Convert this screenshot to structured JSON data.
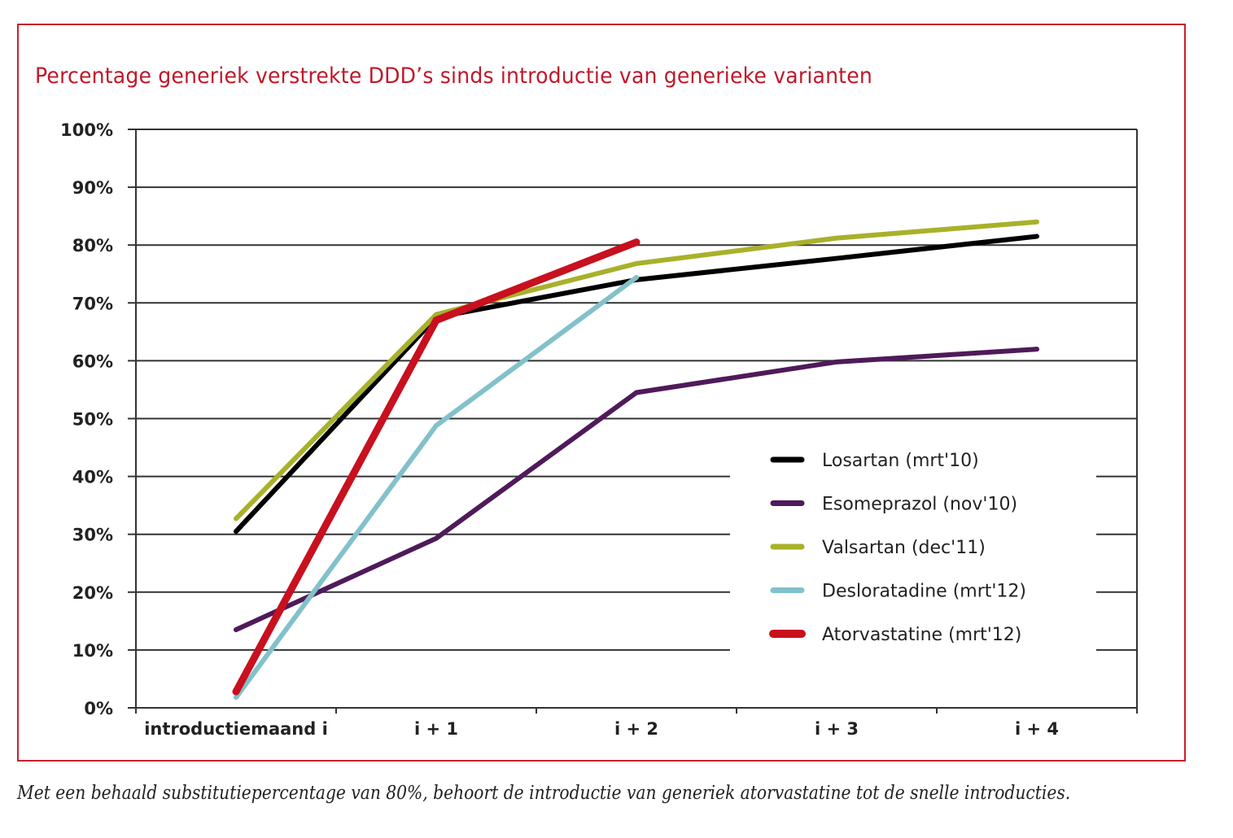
{
  "chart_data": {
    "type": "line",
    "title": "Percentage generiek verstrekte DDD’s sinds introductie van generieke varianten",
    "xlabel": "",
    "ylabel": "",
    "categories": [
      "introductiemaand i",
      "i + 1",
      "i + 2",
      "i + 3",
      "i + 4"
    ],
    "ylim": [
      0,
      100
    ],
    "yticks": [
      0,
      10,
      20,
      30,
      40,
      50,
      60,
      70,
      80,
      90,
      100
    ],
    "ytick_labels": [
      "0%",
      "10%",
      "20%",
      "30%",
      "40%",
      "50%",
      "60%",
      "70%",
      "80%",
      "90%",
      "100%"
    ],
    "grid": true,
    "legend_position": "bottom-right",
    "series": [
      {
        "name": "Losartan (mrt'10)",
        "color": "#000000",
        "values": [
          30.5,
          67.5,
          74.0,
          77.7,
          81.5
        ]
      },
      {
        "name": "Esomeprazol (nov'10)",
        "color": "#4f1a5a",
        "values": [
          13.5,
          29.3,
          54.5,
          59.8,
          62.0
        ]
      },
      {
        "name": "Valsartan (dec'11)",
        "color": "#a8b12a",
        "values": [
          32.7,
          68.0,
          76.8,
          81.2,
          84.0
        ]
      },
      {
        "name": "Desloratadine (mrt'12)",
        "color": "#82c1cb",
        "values": [
          1.8,
          48.8,
          74.4,
          null,
          null
        ]
      },
      {
        "name": "Atorvastatine (mrt'12)",
        "color": "#c8101e",
        "values": [
          2.8,
          67.0,
          80.5,
          null,
          null
        ]
      }
    ],
    "draw_order": [
      0,
      1,
      3,
      2,
      4
    ]
  },
  "caption": "Met een behaald substitutiepercentage van 80%, behoort de introductie van generiek atorvastatine tot de snelle introducties."
}
